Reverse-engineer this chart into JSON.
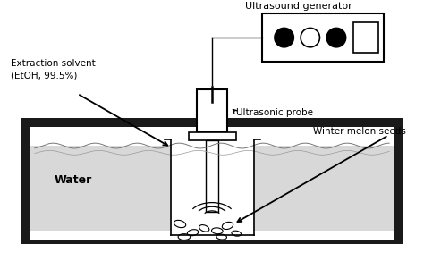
{
  "bg_color": "#ffffff",
  "fig_width": 4.74,
  "fig_height": 2.92,
  "dpi": 100,
  "labels": {
    "ultrasound_generator": "Ultrasound generator",
    "extraction_solvent": "Extraction solvent\n(EtOH, 99.5%)",
    "ultrasonic_probe": "Ultrasonic probe",
    "water": "Water",
    "winter_melon_seeds": "Winter melon seeds"
  }
}
